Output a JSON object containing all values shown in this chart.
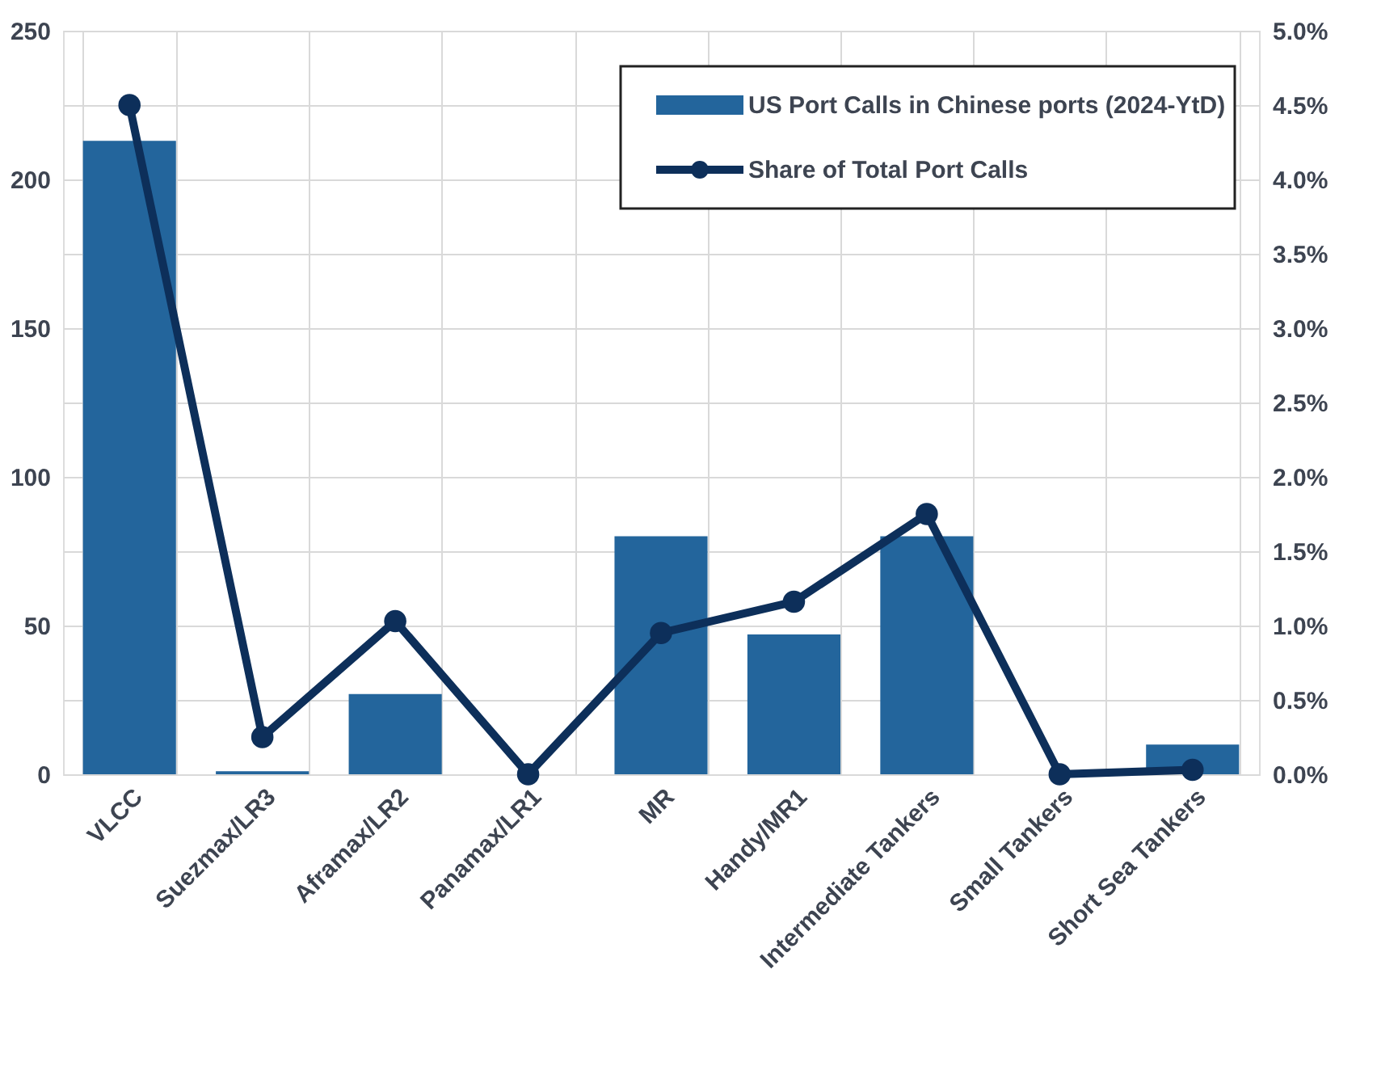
{
  "chart_data": {
    "type": "bar",
    "categories": [
      "VLCC",
      "Suezmax/LR3",
      "Aframax/LR2",
      "Panamax/LR1",
      "MR",
      "Handy/MR1",
      "Intermediate Tankers",
      "Small Tankers",
      "Short Sea Tankers"
    ],
    "series": [
      {
        "name": "US Port Calls in Chinese ports (2024-YtD)",
        "color": "#23659c",
        "values": [
          213,
          1,
          27,
          0,
          80,
          47,
          80,
          0,
          10
        ]
      },
      {
        "name": "Share of Total Port Calls",
        "type": "line",
        "axis": "y2",
        "color": "#0d2f5a",
        "marker": "circle",
        "values": [
          4.5,
          0.25,
          1.03,
          0,
          0.95,
          1.16,
          1.75,
          0,
          0.03
        ]
      }
    ],
    "ylim": [
      0,
      250
    ],
    "yticks": [
      0,
      {
        "value": 25,
        "label": null
      },
      50,
      {
        "value": 75,
        "label": null
      },
      100,
      {
        "value": 125,
        "label": null
      },
      150,
      {
        "value": 175,
        "label": null
      },
      200,
      {
        "value": 225,
        "label": null
      },
      250
    ],
    "y2lim": [
      0,
      5
    ],
    "y2ticks": [
      {
        "value": 0,
        "label": "0.0%"
      },
      {
        "value": 0.5,
        "label": "0.5%"
      },
      {
        "value": 1,
        "label": "1.0%"
      },
      {
        "value": 1.5,
        "label": "1.5%"
      },
      {
        "value": 2,
        "label": "2.0%"
      },
      {
        "value": 2.5,
        "label": "2.5%"
      },
      {
        "value": 3,
        "label": "3.0%"
      },
      {
        "value": 3.5,
        "label": "3.5%"
      },
      {
        "value": 4,
        "label": "4.0%"
      },
      {
        "value": 4.5,
        "label": "4.5%"
      },
      {
        "value": 5,
        "label": "5.0%"
      }
    ],
    "grid": true,
    "legend": "top right"
  }
}
